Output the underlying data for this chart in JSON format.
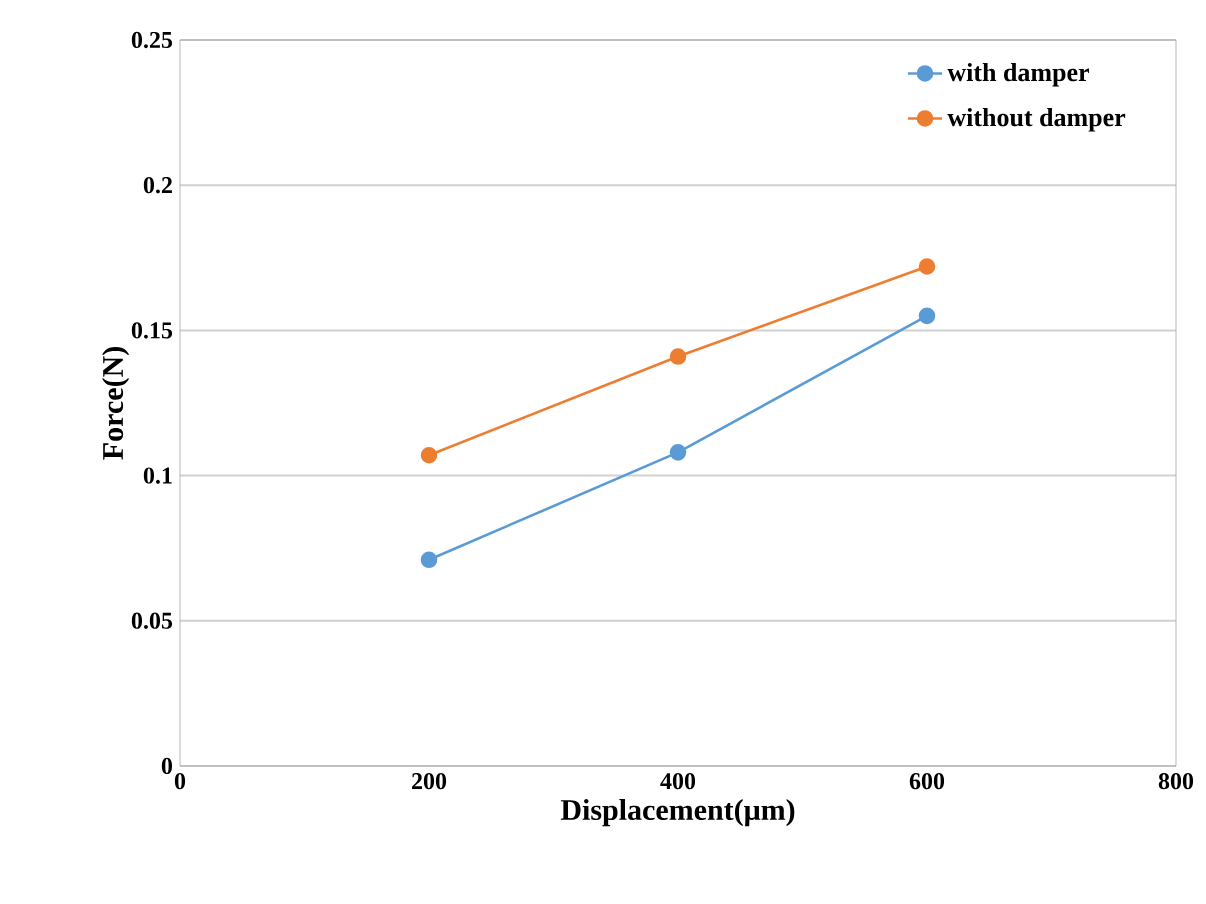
{
  "chart_data": {
    "type": "line",
    "xlabel": "Displacement(μm)",
    "ylabel": "Force(N)",
    "x": [
      200,
      400,
      600
    ],
    "series": [
      {
        "name": "with damper",
        "color": "#5b9bd5",
        "values": [
          0.071,
          0.108,
          0.155
        ]
      },
      {
        "name": "without damper",
        "color": "#ed7d31",
        "values": [
          0.107,
          0.141,
          0.172
        ]
      }
    ],
    "xlim": [
      0,
      800
    ],
    "xticks": [
      0,
      200,
      400,
      600,
      800
    ],
    "ylim": [
      0,
      0.25
    ],
    "yticks": [
      {
        "value": 0,
        "label": "0"
      },
      {
        "value": 0.05,
        "label": "0.05"
      },
      {
        "value": 0.1,
        "label": "0.1"
      },
      {
        "value": 0.15,
        "label": "0.15"
      },
      {
        "value": 0.2,
        "label": "0.2"
      },
      {
        "value": 0.25,
        "label": "0.25"
      }
    ],
    "grid": "y",
    "legend": "top right",
    "marker": "circle",
    "line_style": "solid"
  }
}
